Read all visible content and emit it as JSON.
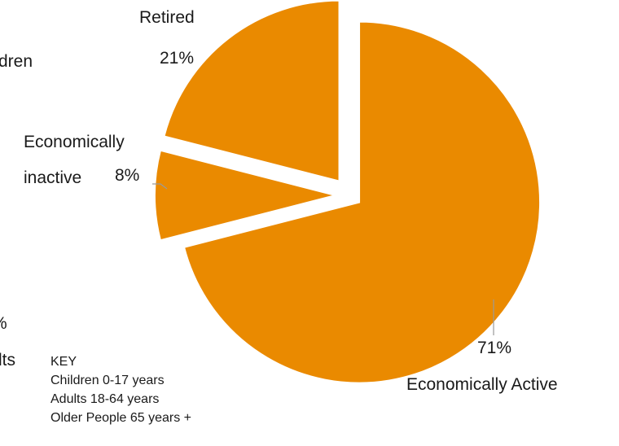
{
  "cropped_left_text": {
    "top": "dren",
    "middle": "%",
    "bottom": "lts"
  },
  "chart_data": {
    "type": "pie",
    "exploded": true,
    "color": "#EA8A00",
    "title": "",
    "slices": [
      {
        "label_line1": "Economically Active",
        "label_line2": "",
        "value_label": "71%",
        "value": 71
      },
      {
        "label_line1": "Economically",
        "label_line2": "inactive",
        "value_label": "8%",
        "value": 8
      },
      {
        "label_line1": "Retired",
        "label_line2": "",
        "value_label": "21%",
        "value": 21
      }
    ]
  },
  "key": {
    "title": "KEY",
    "lines": [
      "Children 0-17 years",
      "Adults 18-64 years",
      "Older People 65 years +"
    ]
  }
}
